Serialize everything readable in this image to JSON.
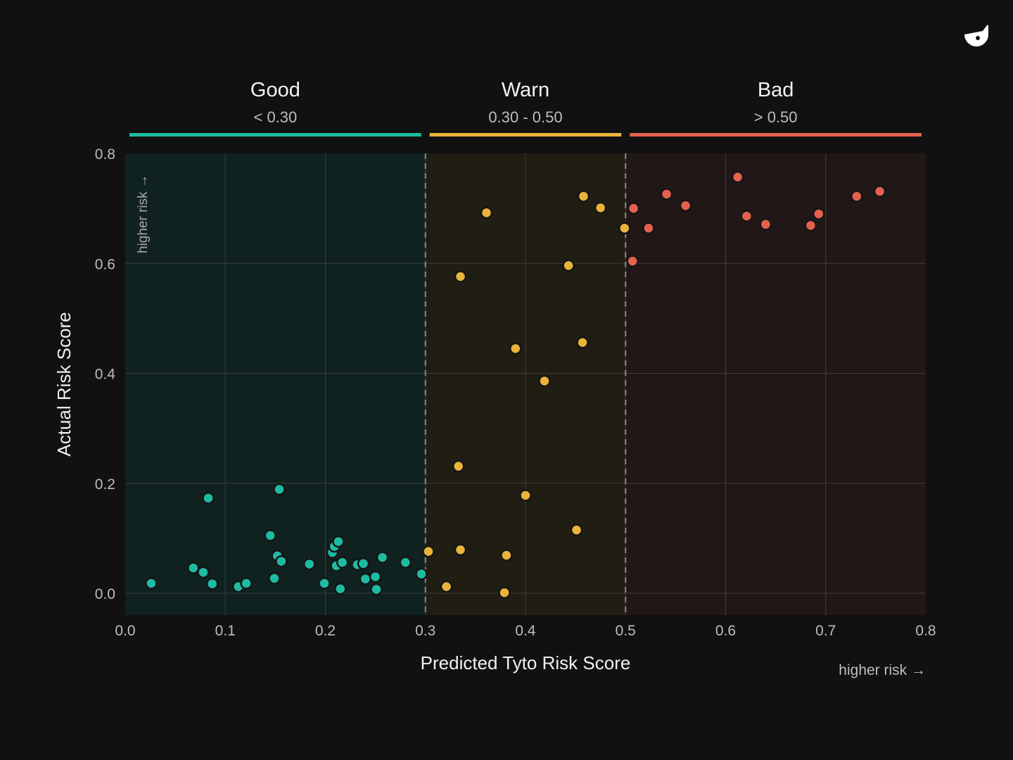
{
  "logo": {
    "name": "owl-logo-icon",
    "color": "#ffffff"
  },
  "bands": [
    {
      "title": "Good",
      "range": "< 0.30",
      "color": "#1dbba2",
      "x0": 0.0,
      "x1": 0.3,
      "fill": "#10221f"
    },
    {
      "title": "Warn",
      "range": "0.30 - 0.50",
      "color": "#eab43b",
      "x0": 0.3,
      "x1": 0.5,
      "fill": "#201d13"
    },
    {
      "title": "Bad",
      "range": "> 0.50",
      "color": "#e5614f",
      "x0": 0.5,
      "x1": 0.8,
      "fill": "#221717"
    }
  ],
  "x_hint": "higher risk →",
  "y_hint": "higher risk →",
  "chart_data": {
    "type": "scatter",
    "xlabel": "Predicted Tyto Risk Score",
    "ylabel": "Actual Risk Score",
    "xlim": [
      0.0,
      0.8
    ],
    "ylim": [
      -0.04,
      0.8
    ],
    "xticks": [
      "0.0",
      "0.1",
      "0.2",
      "0.3",
      "0.4",
      "0.5",
      "0.6",
      "0.7",
      "0.8"
    ],
    "yticks": [
      "0.0",
      "0.2",
      "0.4",
      "0.6",
      "0.8"
    ],
    "grid": true,
    "thresholds": [
      0.3,
      0.5
    ],
    "series": [
      {
        "color": "#1dbba2",
        "points": [
          [
            0.026,
            0.018
          ],
          [
            0.068,
            0.046
          ],
          [
            0.078,
            0.038
          ],
          [
            0.083,
            0.173
          ],
          [
            0.087,
            0.017
          ],
          [
            0.113,
            0.012
          ],
          [
            0.121,
            0.018
          ],
          [
            0.145,
            0.105
          ],
          [
            0.149,
            0.027
          ],
          [
            0.152,
            0.068
          ],
          [
            0.154,
            0.189
          ],
          [
            0.156,
            0.058
          ],
          [
            0.184,
            0.053
          ],
          [
            0.199,
            0.018
          ],
          [
            0.207,
            0.074
          ],
          [
            0.209,
            0.085
          ],
          [
            0.211,
            0.05
          ],
          [
            0.213,
            0.094
          ],
          [
            0.215,
            0.008
          ],
          [
            0.217,
            0.056
          ],
          [
            0.232,
            0.052
          ],
          [
            0.238,
            0.054
          ],
          [
            0.24,
            0.026
          ],
          [
            0.25,
            0.03
          ],
          [
            0.251,
            0.007
          ],
          [
            0.257,
            0.065
          ],
          [
            0.28,
            0.056
          ],
          [
            0.296,
            0.035
          ]
        ]
      },
      {
        "color": "#eab43b",
        "points": [
          [
            0.303,
            0.076
          ],
          [
            0.321,
            0.012
          ],
          [
            0.333,
            0.231
          ],
          [
            0.335,
            0.576
          ],
          [
            0.335,
            0.079
          ],
          [
            0.361,
            0.692
          ],
          [
            0.379,
            0.001
          ],
          [
            0.381,
            0.069
          ],
          [
            0.39,
            0.445
          ],
          [
            0.4,
            0.178
          ],
          [
            0.419,
            0.386
          ],
          [
            0.443,
            0.596
          ],
          [
            0.451,
            0.115
          ],
          [
            0.457,
            0.456
          ],
          [
            0.458,
            0.722
          ],
          [
            0.475,
            0.701
          ],
          [
            0.499,
            0.664
          ]
        ]
      },
      {
        "color": "#e5614f",
        "points": [
          [
            0.507,
            0.604
          ],
          [
            0.508,
            0.7
          ],
          [
            0.523,
            0.664
          ],
          [
            0.541,
            0.726
          ],
          [
            0.56,
            0.705
          ],
          [
            0.612,
            0.757
          ],
          [
            0.621,
            0.686
          ],
          [
            0.64,
            0.671
          ],
          [
            0.685,
            0.669
          ],
          [
            0.693,
            0.69
          ],
          [
            0.731,
            0.722
          ],
          [
            0.754,
            0.731
          ]
        ]
      }
    ]
  }
}
